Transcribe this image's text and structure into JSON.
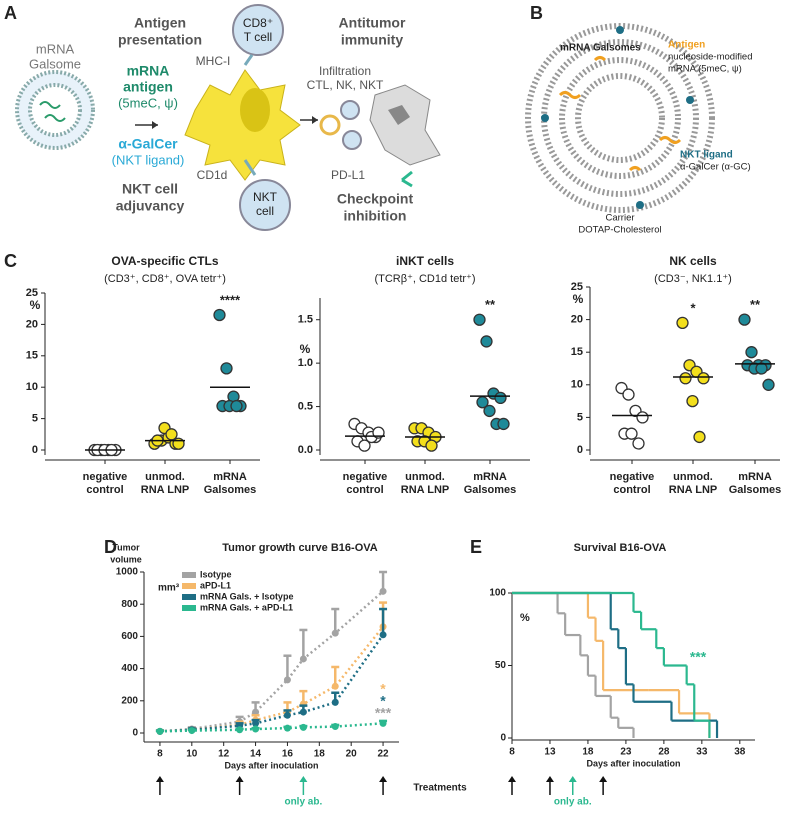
{
  "panel_a": {
    "letter": "A",
    "galsome": [
      "mRNA",
      "Galsome"
    ],
    "antigen_presentation": [
      "Antigen",
      "presentation"
    ],
    "mrna_antigen": [
      "mRNA",
      "antigen",
      "(5meC, ψ)"
    ],
    "agalcer": [
      "α-GalCer",
      "(NKT ligand)"
    ],
    "mhc": "MHC-I",
    "cd8": [
      "CD8⁺",
      "T cell"
    ],
    "antitumor": [
      "Antitumor",
      "immunity"
    ],
    "infiltration": [
      "Infiltration",
      "CTL, NK, NKT"
    ],
    "cd1d": "CD1d",
    "nkt": [
      "NKT",
      "cell"
    ],
    "nkt_adjuvancy": [
      "NKT cell",
      "adjuvancy"
    ],
    "pdl1": "PD-L1",
    "checkpoint": [
      "Checkpoint",
      "inhibition"
    ]
  },
  "panel_b": {
    "letter": "B",
    "title": "mRNA Galsomes",
    "antigen": "Antigen",
    "antigen_desc": [
      "nucleoside-modified",
      "mRNA (5meC, ψ)"
    ],
    "nkt_ligand": "NKT ligand",
    "nkt_desc": "α-GalCer (α-GC)",
    "carrier": "Carrier",
    "carrier_desc": "DOTAP-Cholesterol"
  },
  "panel_letters": {
    "c": "C",
    "d": "D",
    "e": "E"
  },
  "chart_data": [
    {
      "type": "strip",
      "title": "OVA-specific CTLs",
      "subtitle": "(CD3⁺, CD8⁺, OVA tetr⁺)",
      "y_label": "%",
      "categories": [
        [
          "negative",
          "control"
        ],
        [
          "unmod.",
          "RNA LNP"
        ],
        [
          "mRNA",
          "Galsomes"
        ]
      ],
      "colors": [
        "#ffffff",
        "#f3df1c",
        "#1f8a99"
      ],
      "values": [
        [
          0,
          0,
          0,
          0,
          0,
          0,
          0
        ],
        [
          1,
          1.5,
          2,
          1,
          1.5,
          3.5,
          2.5,
          1
        ],
        [
          21.5,
          13,
          8.5,
          7,
          7,
          7,
          7
        ]
      ],
      "means": [
        0,
        1.5,
        10
      ],
      "annotations": [
        null,
        null,
        "****"
      ],
      "ylim": [
        0,
        25
      ],
      "yticks": [
        0,
        5,
        10,
        15,
        20,
        25
      ]
    },
    {
      "type": "strip",
      "title": "iNKT cells",
      "subtitle": "(TCRβ⁺, CD1d tetr⁺)",
      "y_label": "%",
      "categories": [
        [
          "negative",
          "control"
        ],
        [
          "unmod.",
          "RNA LNP"
        ],
        [
          "mRNA",
          "Galsomes"
        ]
      ],
      "colors": [
        "#ffffff",
        "#f3df1c",
        "#1f8a99"
      ],
      "values": [
        [
          0.3,
          0.25,
          0.2,
          0.15,
          0.1,
          0.05,
          0.15,
          0.2
        ],
        [
          0.25,
          0.25,
          0.2,
          0.15,
          0.1,
          0.1,
          0.05
        ],
        [
          1.5,
          1.25,
          0.65,
          0.6,
          0.55,
          0.45,
          0.3,
          0.3
        ]
      ],
      "means": [
        0.16,
        0.15,
        0.62
      ],
      "annotations": [
        null,
        null,
        "**"
      ],
      "ylim": [
        0,
        1.75
      ],
      "yticks": [
        {
          "value": 0,
          "label": "0.0"
        },
        0.5,
        {
          "value": 1,
          "label": "1.0"
        },
        1.5
      ]
    },
    {
      "type": "strip",
      "title": "NK cells",
      "subtitle": "(CD3⁻, NK1.1⁺)",
      "y_label": "%",
      "categories": [
        [
          "negative",
          "control"
        ],
        [
          "unmod.",
          "RNA LNP"
        ],
        [
          "mRNA",
          "Galsomes"
        ]
      ],
      "colors": [
        "#ffffff",
        "#f3df1c",
        "#1f8a99"
      ],
      "values": [
        [
          9.5,
          8.5,
          6,
          5,
          2.5,
          2.5,
          1
        ],
        [
          19.5,
          13,
          12,
          11,
          11,
          7.5,
          2
        ],
        [
          20,
          15,
          13,
          13,
          13,
          12.5,
          12.5,
          10
        ]
      ],
      "means": [
        5.3,
        11.2,
        13.2
      ],
      "annotations": [
        null,
        "*",
        "**"
      ],
      "ylim": [
        0,
        25
      ],
      "yticks": [
        0,
        5,
        10,
        15,
        20,
        25
      ]
    },
    {
      "type": "line",
      "title": "Tumor growth curve B16-OVA",
      "y_label": [
        "Tumor",
        "volume"
      ],
      "y_unit": "mm³",
      "x_label": "Days after inoculation",
      "x": [
        8,
        10,
        13,
        14,
        16,
        17,
        19,
        22
      ],
      "series": [
        {
          "name": "Isotype",
          "color": "#a3a3a3",
          "values": [
            10,
            25,
            70,
            130,
            330,
            460,
            620,
            880
          ],
          "errors": [
            5,
            10,
            30,
            60,
            150,
            180,
            150,
            120
          ]
        },
        {
          "name": "aPD-L1",
          "color": "#f5b86a",
          "values": [
            10,
            20,
            50,
            80,
            130,
            180,
            290,
            660
          ],
          "errors": [
            5,
            8,
            20,
            30,
            60,
            80,
            120,
            150
          ]
        },
        {
          "name": "mRNA Gals. + Isotype",
          "color": "#1e6e85",
          "values": [
            10,
            20,
            45,
            60,
            110,
            130,
            190,
            610
          ],
          "errors": [
            5,
            8,
            15,
            20,
            30,
            40,
            60,
            160
          ]
        },
        {
          "name": "mRNA Gals. + aPD-L1",
          "color": "#2bb88f",
          "values": [
            10,
            15,
            20,
            25,
            30,
            35,
            40,
            60
          ],
          "errors": [
            3,
            5,
            5,
            5,
            8,
            8,
            10,
            15
          ]
        }
      ],
      "annotations": [
        {
          "text": "*",
          "color": "#f5b86a"
        },
        {
          "text": "*",
          "color": "#1e6e85"
        },
        {
          "text": "***",
          "color": "#a3a3a3"
        }
      ],
      "xlim": [
        7,
        23
      ],
      "xticks": [
        8,
        10,
        12,
        14,
        16,
        18,
        20,
        22
      ],
      "ylim": [
        0,
        1000
      ],
      "yticks": [
        0,
        200,
        400,
        600,
        800,
        1000
      ],
      "treatment_label": "Treatments",
      "treatment_days": [
        8,
        13,
        22
      ],
      "antibody_only_days": [
        17
      ],
      "antibody_only_label": "only ab."
    },
    {
      "type": "step",
      "title": "Survival B16-OVA",
      "y_label": "%",
      "x_label": "Days after inoculation",
      "series": [
        {
          "color": "#a3a3a3",
          "x": [
            8,
            14,
            15,
            17,
            18,
            19,
            21,
            22,
            24
          ],
          "values": [
            100,
            86,
            71,
            57,
            43,
            29,
            14,
            7,
            0
          ]
        },
        {
          "color": "#f5b86a",
          "x": [
            8,
            18,
            19,
            20,
            26,
            30,
            34
          ],
          "values": [
            100,
            83,
            67,
            33,
            33,
            17,
            0
          ]
        },
        {
          "color": "#1e6e85",
          "x": [
            8,
            21,
            22,
            23,
            24,
            29,
            35
          ],
          "values": [
            100,
            75,
            62,
            37,
            25,
            12,
            0
          ]
        },
        {
          "color": "#2bb88f",
          "x": [
            8,
            24,
            25,
            27,
            28,
            31,
            32,
            34
          ],
          "values": [
            100,
            87,
            75,
            62,
            50,
            37,
            12,
            0
          ]
        }
      ],
      "annotations": [
        {
          "text": "***",
          "color": "#2bb88f"
        }
      ],
      "xlim": [
        8,
        40
      ],
      "xticks": [
        8,
        13,
        18,
        23,
        28,
        33,
        38
      ],
      "ylim": [
        0,
        100
      ],
      "yticks": [
        0,
        50,
        100
      ],
      "treatment_days": [
        8,
        13,
        20
      ],
      "antibody_only_days": [
        16
      ],
      "antibody_only_label": "only ab."
    }
  ]
}
